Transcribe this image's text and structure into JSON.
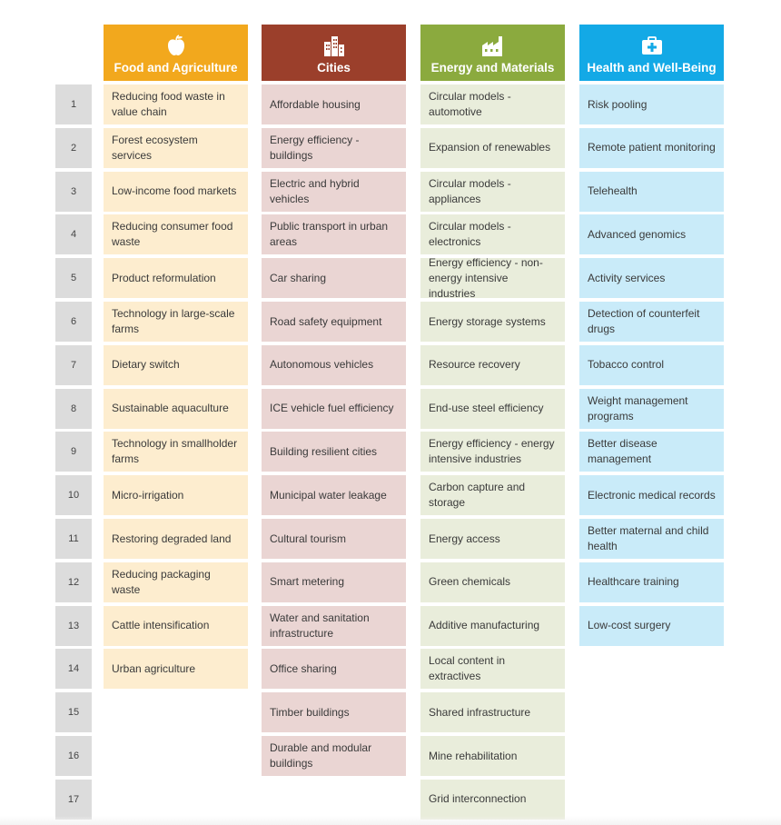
{
  "colors": {
    "food": "#F2A81D",
    "cities": "#9B3F2B",
    "energy": "#8BAA3E",
    "health": "#13A9E6",
    "row_number_bg": "#DCDCDC"
  },
  "row_numbers": [
    "1",
    "2",
    "3",
    "4",
    "5",
    "6",
    "7",
    "8",
    "9",
    "10",
    "11",
    "12",
    "13",
    "14",
    "15",
    "16",
    "17"
  ],
  "columns": [
    {
      "key": "food",
      "title": "Food and Agriculture",
      "icon": "apple-icon",
      "items": [
        "Reducing food waste in value chain",
        "Forest ecosystem services",
        "Low-income food markets",
        "Reducing consumer food waste",
        "Product reformulation",
        "Technology in large-scale farms",
        "Dietary switch",
        "Sustainable aquaculture",
        "Technology in smallholder farms",
        "Micro-irrigation",
        "Restoring degraded land",
        "Reducing packaging waste",
        "Cattle intensification",
        "Urban agriculture"
      ]
    },
    {
      "key": "city",
      "title": "Cities",
      "icon": "buildings-icon",
      "items": [
        "Affordable housing",
        "Energy efficiency - buildings",
        "Electric and hybrid vehicles",
        "Public transport in urban areas",
        "Car sharing",
        "Road safety equipment",
        "Autonomous vehicles",
        "ICE vehicle fuel efficiency",
        "Building resilient cities",
        "Municipal water leakage",
        "Cultural tourism",
        "Smart metering",
        "Water and sanitation infrastructure",
        "Office sharing",
        "Timber buildings",
        "Durable and modular buildings"
      ]
    },
    {
      "key": "energy",
      "title": "Energy and Materials",
      "icon": "factory-icon",
      "items": [
        "Circular models - automotive",
        "Expansion of renewables",
        "Circular models - appliances",
        "Circular models - electronics",
        "Energy efficiency - non-energy intensive industries",
        "Energy storage systems",
        "Resource recovery",
        "End-use steel efficiency",
        "Energy efficiency - energy intensive industries",
        "Carbon capture and storage",
        "Energy access",
        "Green chemicals",
        "Additive manufacturing",
        "Local content in extractives",
        "Shared infrastructure",
        "Mine rehabilitation",
        "Grid interconnection"
      ]
    },
    {
      "key": "health",
      "title": "Health and Well-Being",
      "icon": "medical-kit-icon",
      "items": [
        "Risk pooling",
        "Remote patient monitoring",
        "Telehealth",
        "Advanced genomics",
        "Activity services",
        "Detection of counterfeit drugs",
        "Tobacco control",
        "Weight management programs",
        "Better disease management",
        "Electronic medical records",
        "Better maternal and child health",
        "Healthcare training",
        "Low-cost surgery"
      ]
    }
  ]
}
